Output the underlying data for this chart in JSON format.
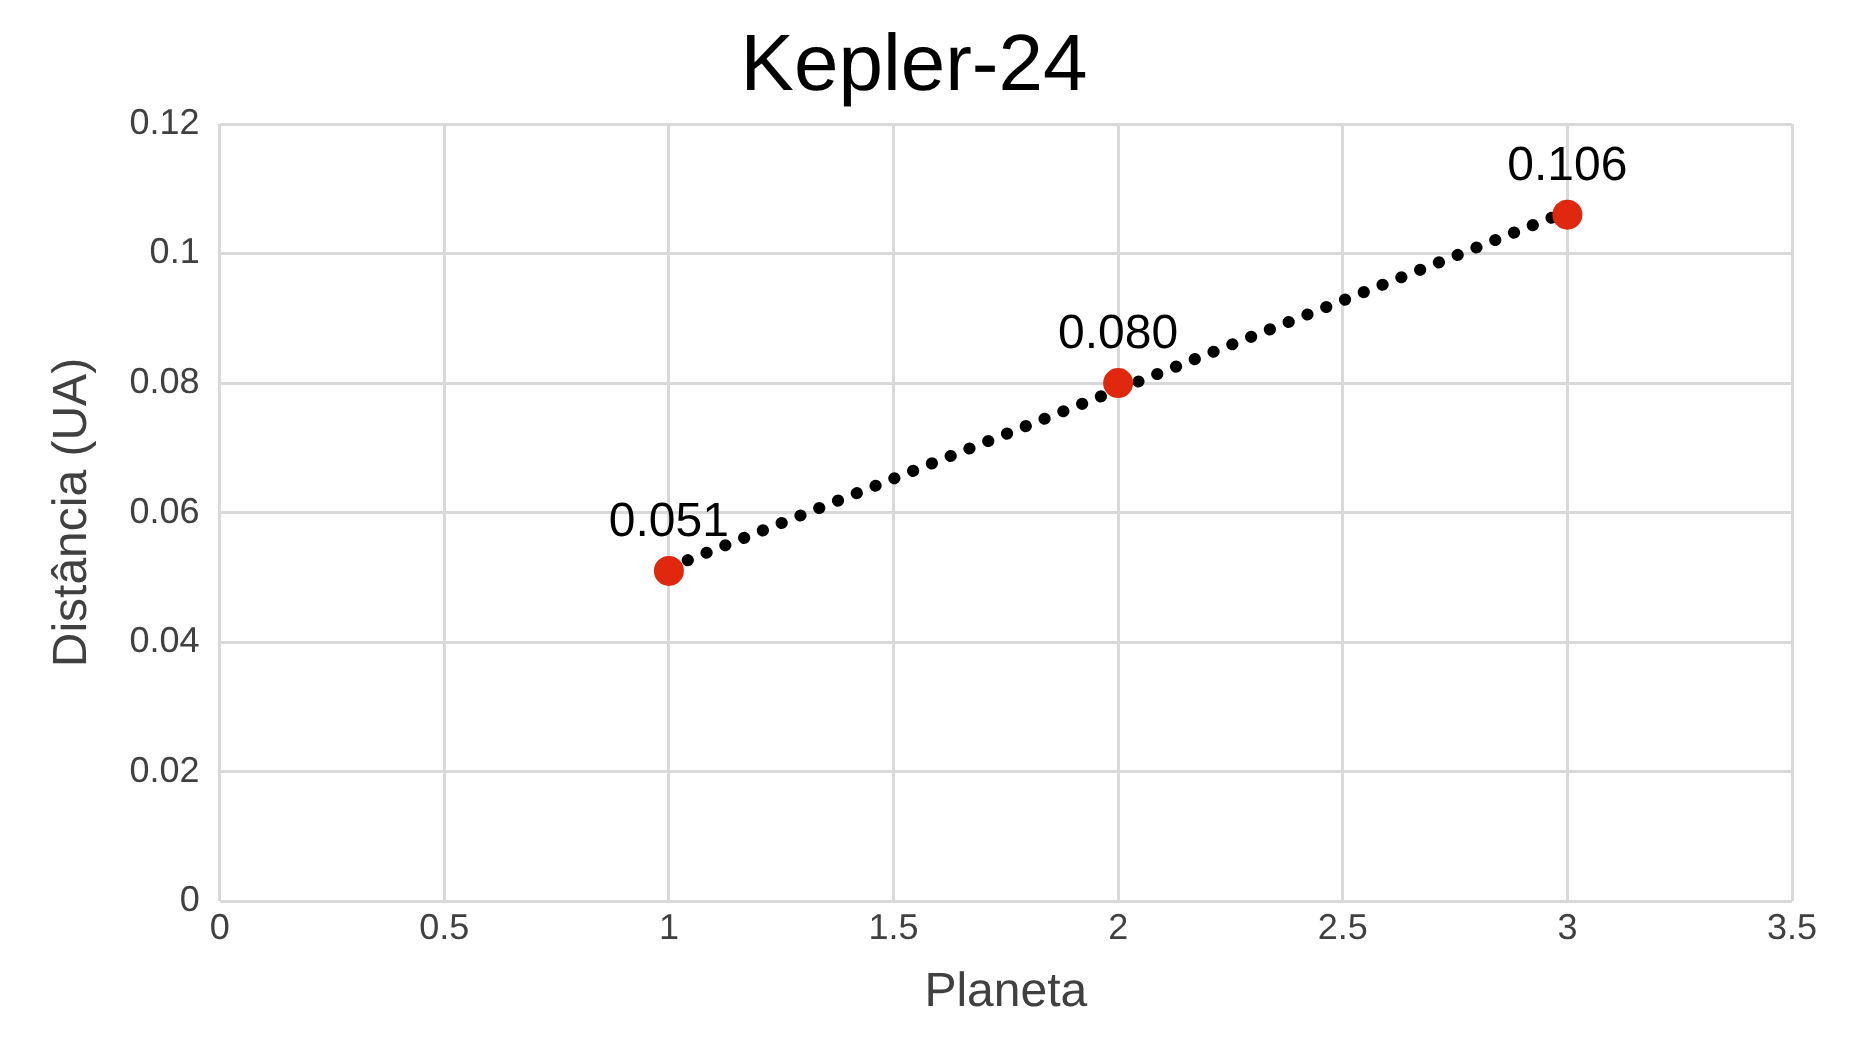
{
  "chart_data": {
    "type": "scatter",
    "title": "Kepler-24",
    "xlabel": "Planeta",
    "ylabel": "Distância (UA)",
    "xlim": [
      0,
      3.5
    ],
    "xticks": [
      0,
      0.5,
      1,
      1.5,
      2,
      2.5,
      3,
      3.5
    ],
    "ylim": [
      0,
      0.12
    ],
    "yticks": [
      0,
      0.02,
      0.04,
      0.06,
      0.08,
      0.1,
      0.12
    ],
    "grid": true,
    "marker": "circle",
    "series": [
      {
        "type": "line",
        "color": "#000000",
        "x": [
          1,
          3
        ],
        "values": [
          0.0515,
          0.1065
        ],
        "line_style": "dotted",
        "marker": "none"
      },
      {
        "type": "scatter",
        "color": "#e0280f",
        "x": [
          1,
          2,
          3
        ],
        "values": [
          0.051,
          0.08,
          0.106
        ],
        "value_labels": [
          "0.051",
          "0.080",
          "0.106"
        ]
      }
    ]
  }
}
